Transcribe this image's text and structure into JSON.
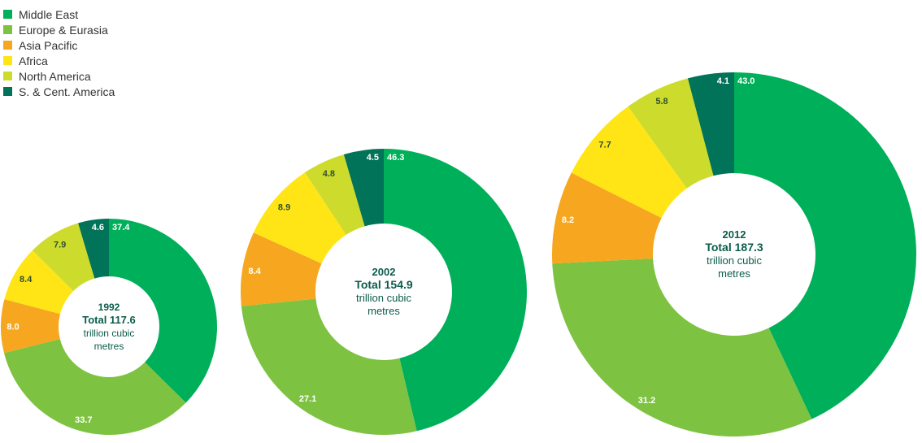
{
  "legend": [
    {
      "name": "Middle East",
      "color": "#00af5a"
    },
    {
      "name": "Europe & Eurasia",
      "color": "#7ec242"
    },
    {
      "name": "Asia Pacific",
      "color": "#f6a71f"
    },
    {
      "name": "Africa",
      "color": "#ffe516"
    },
    {
      "name": "North America",
      "color": "#cddc2c"
    },
    {
      "name": "S. & Cent. America",
      "color": "#007358"
    }
  ],
  "chart_data": [
    {
      "type": "pie",
      "year": "1992",
      "total_label": "Total 117.6",
      "unit_line1": "trillion cubic",
      "unit_line2": "metres",
      "labels": [
        "Middle East",
        "Europe & Eurasia",
        "Asia Pacific",
        "Africa",
        "North America",
        "S. & Cent. America"
      ],
      "values": [
        37.4,
        33.7,
        8.0,
        8.4,
        7.9,
        4.6
      ],
      "value_labels": [
        "37.4",
        "33.7",
        "8.0",
        "8.4",
        "7.9",
        "4.6"
      ]
    },
    {
      "type": "pie",
      "year": "2002",
      "total_label": "Total 154.9",
      "unit_line1": "trillion cubic",
      "unit_line2": "metres",
      "labels": [
        "Middle East",
        "Europe & Eurasia",
        "Asia Pacific",
        "Africa",
        "North America",
        "S. & Cent. America"
      ],
      "values": [
        46.3,
        27.1,
        8.4,
        8.9,
        4.8,
        4.5
      ],
      "value_labels": [
        "46.3",
        "27.1",
        "8.4",
        "8.9",
        "4.8",
        "4.5"
      ]
    },
    {
      "type": "pie",
      "year": "2012",
      "total_label": "Total 187.3",
      "unit_line1": "trillion cubic",
      "unit_line2": "metres",
      "labels": [
        "Middle East",
        "Europe & Eurasia",
        "Asia Pacific",
        "Africa",
        "North America",
        "S. & Cent. America"
      ],
      "values": [
        43.0,
        31.2,
        8.2,
        7.7,
        5.8,
        4.1
      ],
      "value_labels": [
        "43.0",
        "31.2",
        "8.2",
        "7.7",
        "5.8",
        "4.1"
      ]
    }
  ]
}
